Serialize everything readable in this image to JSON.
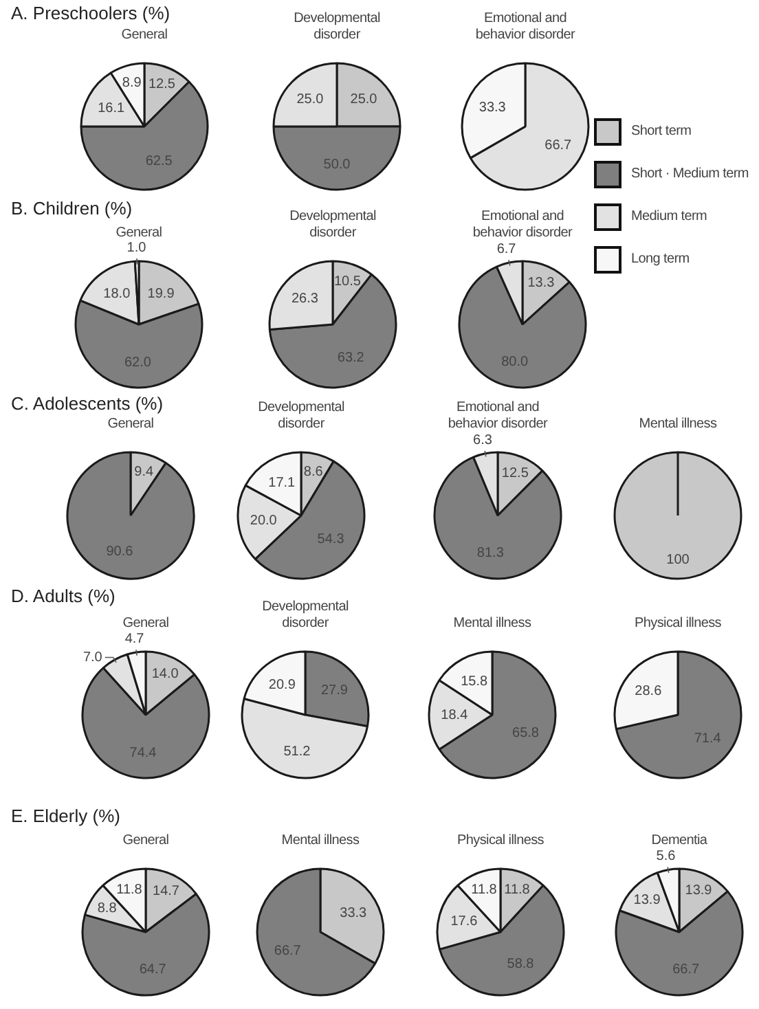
{
  "chart_data": [
    {
      "type": "pie",
      "title": "General",
      "annotations": [
        "A. Preschoolers (%)"
      ],
      "legend": "right",
      "categories": [
        "Short term",
        "Short · Medium term",
        "Medium term",
        "Long term"
      ],
      "colors": [
        "#c8c8c8",
        "#7f7f7f",
        "#e2e2e2",
        "#f7f7f7"
      ],
      "values": [
        12.5,
        62.5,
        16.1,
        8.9
      ],
      "value_labels": [
        "12.5",
        "62.5",
        "16.1",
        "8.9"
      ]
    },
    {
      "type": "pie",
      "title": "Developmental\ndisorder",
      "categories": [
        null,
        null,
        null,
        null
      ],
      "colors": [
        "#c8c8c8",
        "#7f7f7f",
        "#e2e2e2",
        "#f7f7f7"
      ],
      "values": [
        25.0,
        50.0,
        25.0,
        0
      ],
      "value_labels": [
        "25.0",
        "50.0",
        "25.0",
        null
      ]
    },
    {
      "type": "pie",
      "title": "Emotional and\nbehavior disorder",
      "categories": [
        null,
        null,
        null,
        null
      ],
      "colors": [
        "#c8c8c8",
        "#7f7f7f",
        "#e2e2e2",
        "#f7f7f7"
      ],
      "values": [
        0,
        0,
        66.7,
        33.3
      ],
      "value_labels": [
        null,
        null,
        "66.7",
        "33.3"
      ]
    },
    {
      "type": "pie",
      "title": "General",
      "annotations": [
        "B. Children (%)"
      ],
      "categories": [
        null,
        null,
        null,
        null
      ],
      "colors": [
        "#c8c8c8",
        "#7f7f7f",
        "#e2e2e2",
        "#f7f7f7"
      ],
      "values": [
        19.9,
        62.0,
        18.0,
        1.0
      ],
      "value_labels": [
        "19.9",
        "62.0",
        "18.0",
        "1.0"
      ]
    },
    {
      "type": "pie",
      "title": "Developmental\ndisorder",
      "categories": [
        null,
        null,
        null,
        null
      ],
      "colors": [
        "#c8c8c8",
        "#7f7f7f",
        "#e2e2e2",
        "#f7f7f7"
      ],
      "values": [
        10.5,
        63.2,
        26.3,
        0
      ],
      "value_labels": [
        "10.5",
        "63.2",
        "26.3",
        null
      ]
    },
    {
      "type": "pie",
      "title": "Emotional and\nbehavior disorder",
      "categories": [
        null,
        null,
        null,
        null
      ],
      "colors": [
        "#c8c8c8",
        "#7f7f7f",
        "#e2e2e2",
        "#f7f7f7"
      ],
      "values": [
        13.3,
        80.0,
        6.7,
        0
      ],
      "value_labels": [
        "13.3",
        "80.0",
        "6.7",
        null
      ]
    },
    {
      "type": "pie",
      "title": "General",
      "annotations": [
        "C. Adolescents (%)"
      ],
      "categories": [
        null,
        null,
        null,
        null
      ],
      "colors": [
        "#c8c8c8",
        "#7f7f7f",
        "#e2e2e2",
        "#f7f7f7"
      ],
      "values": [
        9.4,
        90.6,
        0,
        0
      ],
      "value_labels": [
        "9.4",
        "90.6",
        null,
        null
      ]
    },
    {
      "type": "pie",
      "title": "Developmental\ndisorder",
      "categories": [
        null,
        null,
        null,
        null
      ],
      "colors": [
        "#c8c8c8",
        "#7f7f7f",
        "#e2e2e2",
        "#f7f7f7"
      ],
      "values": [
        8.6,
        54.3,
        20.0,
        17.1
      ],
      "value_labels": [
        "8.6",
        "54.3",
        "20.0",
        "17.1"
      ]
    },
    {
      "type": "pie",
      "title": "Emotional and\nbehavior disorder",
      "categories": [
        null,
        null,
        null,
        null
      ],
      "colors": [
        "#c8c8c8",
        "#7f7f7f",
        "#e2e2e2",
        "#f7f7f7"
      ],
      "values": [
        12.5,
        81.3,
        6.3,
        0
      ],
      "value_labels": [
        "12.5",
        "81.3",
        "6.3",
        null
      ]
    },
    {
      "type": "pie",
      "title": "Mental illness",
      "categories": [
        null,
        null,
        null,
        null
      ],
      "colors": [
        "#c8c8c8",
        "#7f7f7f",
        "#e2e2e2",
        "#f7f7f7"
      ],
      "values": [
        100,
        0,
        0,
        0
      ],
      "value_labels": [
        "100",
        null,
        null,
        null
      ]
    },
    {
      "type": "pie",
      "title": "General",
      "annotations": [
        "D. Adults (%)"
      ],
      "categories": [
        null,
        null,
        null,
        null
      ],
      "colors": [
        "#c8c8c8",
        "#7f7f7f",
        "#e2e2e2",
        "#f7f7f7"
      ],
      "values": [
        14.0,
        74.4,
        7.0,
        4.7
      ],
      "value_labels": [
        "14.0",
        "74.4",
        "7.0",
        "4.7"
      ]
    },
    {
      "type": "pie",
      "title": "Developmental\ndisorder",
      "categories": [
        null,
        null,
        null,
        null
      ],
      "colors": [
        "#c8c8c8",
        "#7f7f7f",
        "#e2e2e2",
        "#f7f7f7"
      ],
      "values": [
        0,
        27.9,
        51.2,
        20.9
      ],
      "value_labels": [
        null,
        "27.9",
        "51.2",
        "20.9"
      ]
    },
    {
      "type": "pie",
      "title": "Mental illness",
      "categories": [
        null,
        null,
        null,
        null
      ],
      "colors": [
        "#c8c8c8",
        "#7f7f7f",
        "#e2e2e2",
        "#f7f7f7"
      ],
      "values": [
        0,
        65.8,
        18.4,
        15.8
      ],
      "value_labels": [
        null,
        "65.8",
        "18.4",
        "15.8"
      ]
    },
    {
      "type": "pie",
      "title": "Physical illness",
      "categories": [
        null,
        null,
        null,
        null
      ],
      "colors": [
        "#c8c8c8",
        "#7f7f7f",
        "#e2e2e2",
        "#f7f7f7"
      ],
      "values": [
        0,
        71.4,
        0,
        28.6
      ],
      "value_labels": [
        null,
        "71.4",
        null,
        "28.6"
      ]
    },
    {
      "type": "pie",
      "title": "General",
      "annotations": [
        "E. Elderly (%)"
      ],
      "categories": [
        null,
        null,
        null,
        null
      ],
      "colors": [
        "#c8c8c8",
        "#7f7f7f",
        "#e2e2e2",
        "#f7f7f7"
      ],
      "values": [
        14.7,
        64.7,
        8.8,
        11.8
      ],
      "value_labels": [
        "14.7",
        "64.7",
        "8.8",
        "11.8"
      ]
    },
    {
      "type": "pie",
      "title": "Mental illness",
      "categories": [
        null,
        null,
        null,
        null
      ],
      "colors": [
        "#c8c8c8",
        "#7f7f7f",
        "#e2e2e2",
        "#f7f7f7"
      ],
      "values": [
        33.3,
        66.7,
        0,
        0
      ],
      "value_labels": [
        "33.3",
        "66.7",
        null,
        null
      ]
    },
    {
      "type": "pie",
      "title": "Physical illness",
      "categories": [
        null,
        null,
        null,
        null
      ],
      "colors": [
        "#c8c8c8",
        "#7f7f7f",
        "#e2e2e2",
        "#f7f7f7"
      ],
      "values": [
        11.8,
        58.8,
        17.6,
        11.8
      ],
      "value_labels": [
        "11.8",
        "58.8",
        "17.6",
        "11.8"
      ]
    },
    {
      "type": "pie",
      "title": "Dementia",
      "categories": [
        null,
        null,
        null,
        null
      ],
      "colors": [
        "#c8c8c8",
        "#7f7f7f",
        "#e2e2e2",
        "#f7f7f7"
      ],
      "values": [
        13.9,
        66.7,
        13.9,
        5.6
      ],
      "value_labels": [
        "13.9",
        "66.7",
        "13.9",
        "5.6"
      ]
    }
  ]
}
